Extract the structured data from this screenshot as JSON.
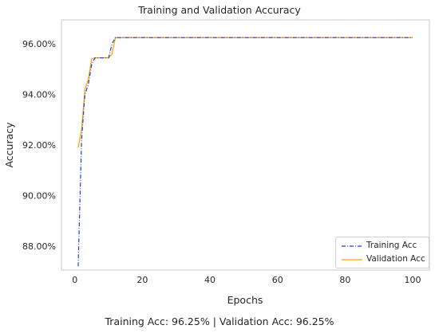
{
  "chart_data": {
    "type": "line",
    "title": "Training and Validation Accuracy",
    "xlabel": "Epochs",
    "ylabel": "Accuracy",
    "xlim": [
      -3.95,
      104.95
    ],
    "ylim": [
      0.8705,
      0.9695
    ],
    "xticks": [
      0,
      20,
      40,
      60,
      80,
      100
    ],
    "yticks": [
      0.88,
      0.9,
      0.92,
      0.94,
      0.96
    ],
    "ytick_labels": [
      "88.00%",
      "90.00%",
      "92.00%",
      "94.00%",
      "96.00%"
    ],
    "grid": false,
    "legend_position": "lower-right",
    "series": [
      {
        "name": "Training Acc",
        "color": "#1f3fe0",
        "linestyle": "dashdot",
        "x": [
          1,
          2,
          3,
          4,
          5,
          6,
          7,
          8,
          9,
          10,
          11,
          12,
          15,
          20,
          30,
          40,
          50,
          60,
          70,
          80,
          90,
          100
        ],
        "y": [
          0.872,
          0.922,
          0.94,
          0.944,
          0.952,
          0.9545,
          0.9545,
          0.9545,
          0.9545,
          0.9545,
          0.96,
          0.9625,
          0.9625,
          0.9625,
          0.9625,
          0.9625,
          0.9625,
          0.9625,
          0.9625,
          0.9625,
          0.9625,
          0.9625
        ]
      },
      {
        "name": "Validation Acc",
        "color": "#ffa500",
        "linestyle": "solid",
        "x": [
          1,
          2,
          3,
          4,
          5,
          6,
          7,
          8,
          9,
          10,
          11,
          12,
          15,
          20,
          30,
          40,
          50,
          60,
          70,
          80,
          90,
          100
        ],
        "y": [
          0.919,
          0.926,
          0.942,
          0.946,
          0.954,
          0.9545,
          0.9545,
          0.9545,
          0.9545,
          0.9545,
          0.956,
          0.9625,
          0.9625,
          0.9625,
          0.9625,
          0.9625,
          0.9625,
          0.9625,
          0.9625,
          0.9625,
          0.9625,
          0.9625
        ]
      }
    ]
  },
  "caption": "Training Acc: 96.25%  |  Validation Acc: 96.25%"
}
